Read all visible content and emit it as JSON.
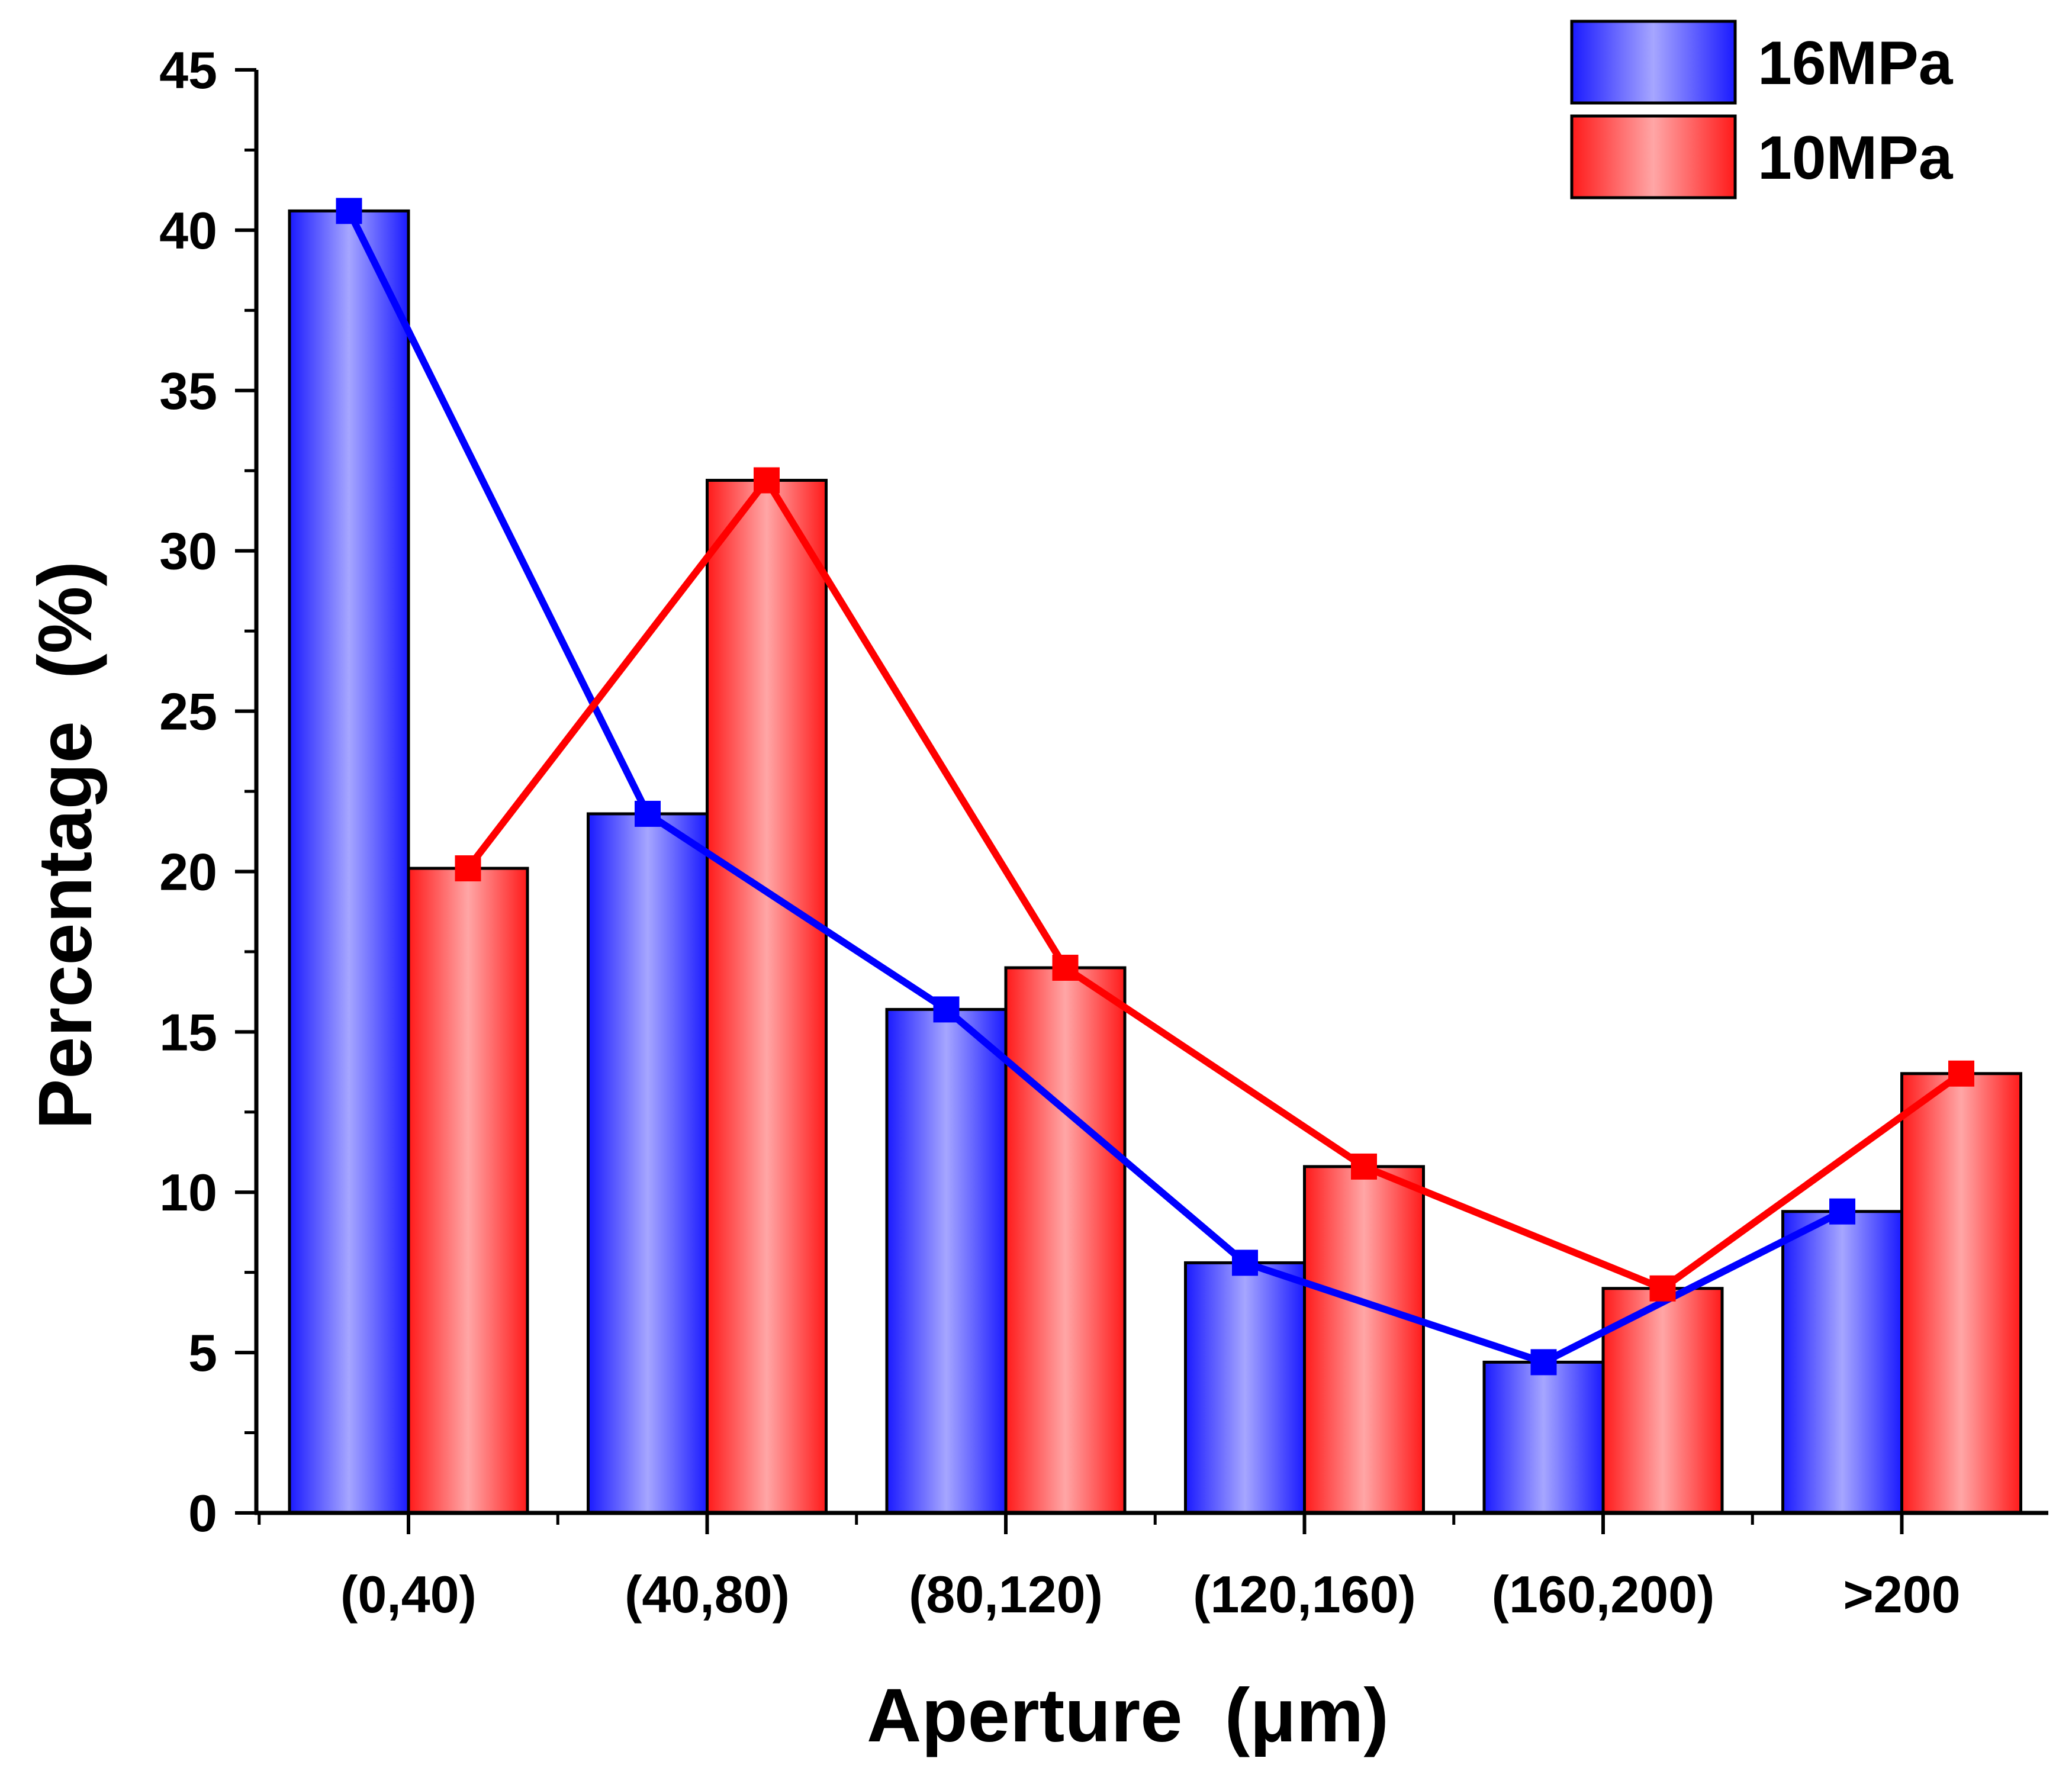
{
  "chart_data": {
    "type": "bar",
    "title": "",
    "xlabel": "Aperture  (μm)",
    "ylabel": "Percentage  (%)",
    "ylim": [
      0,
      45
    ],
    "yticks": [
      "0",
      "5",
      "10",
      "15",
      "20",
      "25",
      "30",
      "35",
      "40",
      "45"
    ],
    "categories": [
      "(0,40)",
      "(40,80)",
      "(80,120)",
      "(120,160)",
      "(160,200)",
      ">200"
    ],
    "series": [
      {
        "name": "16MPa",
        "color": "#1a1aff",
        "light": "#a6a6ff",
        "line_color": "#0000ff",
        "values": [
          40.6,
          21.8,
          15.7,
          7.8,
          4.7,
          9.4
        ]
      },
      {
        "name": "10MPa",
        "color": "#ff1a1a",
        "light": "#ffa6a6",
        "line_color": "#ff0000",
        "values": [
          20.1,
          32.2,
          17.0,
          10.8,
          7.0,
          13.7
        ]
      }
    ],
    "overlay": "line connecting bar tops with square markers for each series",
    "legend_position": "top-right",
    "grid": false
  }
}
